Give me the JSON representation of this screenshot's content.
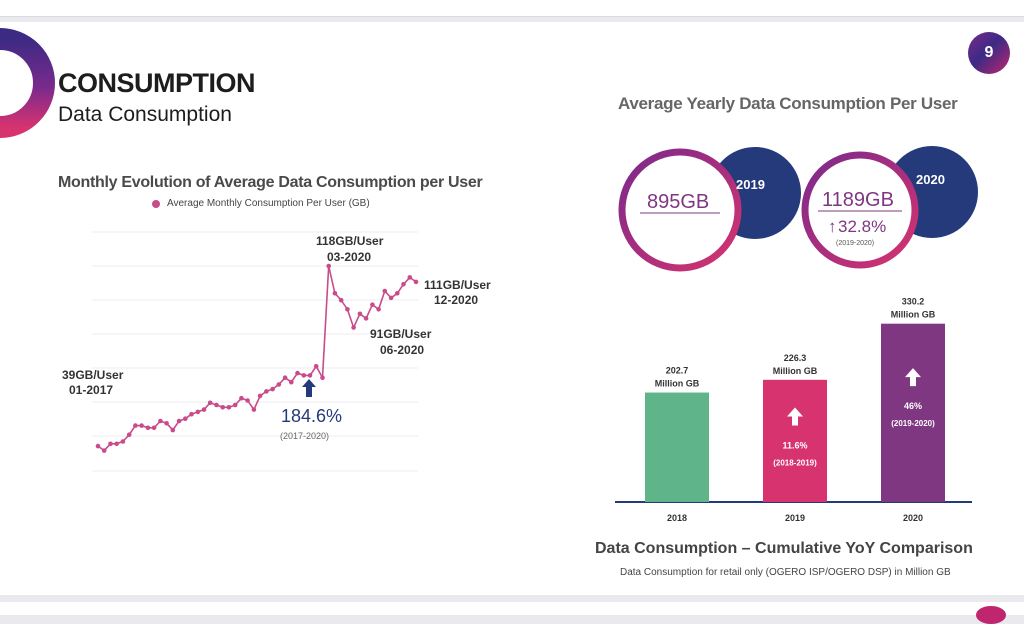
{
  "page": {
    "number": "9",
    "title": "CONSUMPTION",
    "subtitle": "Data Consumption"
  },
  "colors": {
    "accent_pink": "#c94b8a",
    "navy": "#243a7a",
    "green": "#5fb489",
    "magenta": "#d6336f",
    "purple": "#7f3782"
  },
  "chart_data": [
    {
      "type": "line",
      "title": "Monthly Evolution of Average Data Consumption per User",
      "series": [
        {
          "name": "Average Monthly Consumption Per User (GB)",
          "values": [
            39,
            37,
            40,
            40,
            41,
            44,
            48,
            48,
            47,
            47,
            50,
            49,
            46,
            50,
            51,
            53,
            54,
            55,
            58,
            57,
            56,
            56,
            57,
            60,
            59,
            55,
            61,
            63,
            64,
            66,
            69,
            67,
            71,
            70,
            70,
            74,
            69,
            118,
            106,
            103,
            99,
            91,
            97,
            95,
            101,
            99,
            107,
            104,
            106,
            110,
            113,
            111
          ]
        }
      ],
      "x_range": [
        "01-2017",
        "12-2020"
      ],
      "annotations": [
        {
          "label": "39GB/User",
          "sub": "01-2017"
        },
        {
          "label": "118GB/User",
          "sub": "03-2020"
        },
        {
          "label": "111GB/User",
          "sub": "12-2020"
        },
        {
          "label": "91GB/User",
          "sub": "06-2020"
        }
      ],
      "growth": {
        "value": "184.6%",
        "period": "(2017-2020)"
      }
    },
    {
      "type": "bar",
      "title": "Data Consumption – Cumulative YoY Comparison",
      "note": "Data Consumption for retail only (OGERO ISP/OGERO DSP) in Million GB",
      "categories": [
        "2018",
        "2019",
        "2020"
      ],
      "values": [
        202.7,
        226.3,
        330.2
      ],
      "value_labels": [
        "202.7",
        "226.3",
        "330.2"
      ],
      "value_unit": "Million GB",
      "colors": [
        "#5fb489",
        "#d6336f",
        "#7f3782"
      ],
      "growth": [
        null,
        {
          "value": "11.6%",
          "period": "(2018-2019)"
        },
        {
          "value": "46%",
          "period": "(2019-2020)"
        }
      ]
    }
  ],
  "yearly": {
    "title": "Average Yearly Data Consumption Per User",
    "items": [
      {
        "year": "2019",
        "value": "895GB"
      },
      {
        "year": "2020",
        "value": "1189GB",
        "growth": "32.8%",
        "period": "(2019-2020)"
      }
    ]
  },
  "icons": {
    "up_arrow": "↑"
  }
}
